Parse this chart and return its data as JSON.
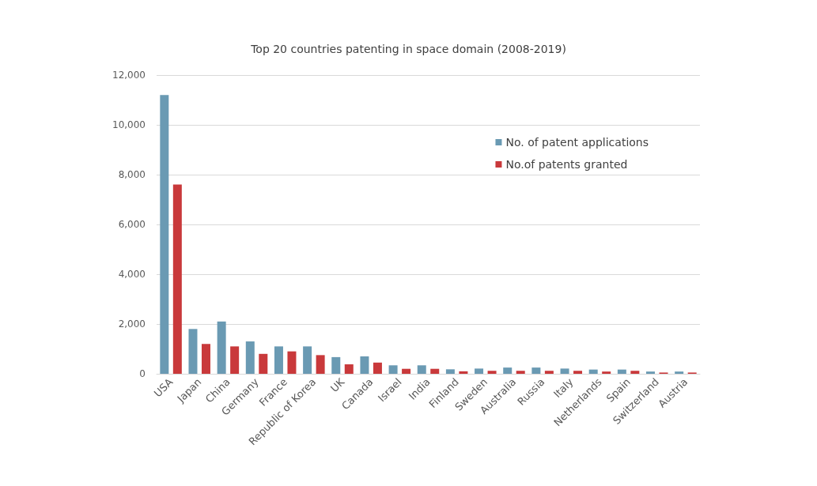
{
  "chart_data": {
    "type": "bar",
    "title": "Top 20 countries patenting in space domain (2008-2019)",
    "categories": [
      "USA",
      "Japan",
      "China",
      "Germany",
      "France",
      "Republic of Korea",
      "UK",
      "Canada",
      "Israel",
      "India",
      "Finland",
      "Sweden",
      "Australia",
      "Russia",
      "Italy",
      "Netherlands",
      "Spain",
      "Switzerland",
      "Austria"
    ],
    "series": [
      {
        "name": "No. of patent applications",
        "color": "#6a9ab3",
        "values": [
          11200,
          1800,
          2100,
          1300,
          1100,
          1100,
          670,
          700,
          340,
          340,
          180,
          210,
          250,
          250,
          210,
          170,
          170,
          90,
          90
        ]
      },
      {
        "name": "No.of patents granted",
        "color": "#c9393b",
        "values": [
          7600,
          1200,
          1100,
          800,
          900,
          750,
          380,
          450,
          200,
          200,
          100,
          120,
          120,
          120,
          120,
          90,
          120,
          50,
          50
        ]
      }
    ],
    "ylim": [
      0,
      12000
    ],
    "yticks": [
      0,
      {
        "value": 2000,
        "label": "2,000"
      },
      {
        "value": 4000,
        "label": "4,000"
      },
      {
        "value": 6000,
        "label": "6,000"
      },
      {
        "value": 8000,
        "label": "8,000"
      },
      {
        "value": 10000,
        "label": "10,000"
      },
      {
        "value": 12000,
        "label": "12,000"
      }
    ],
    "grid": "y",
    "legend": "top right"
  }
}
